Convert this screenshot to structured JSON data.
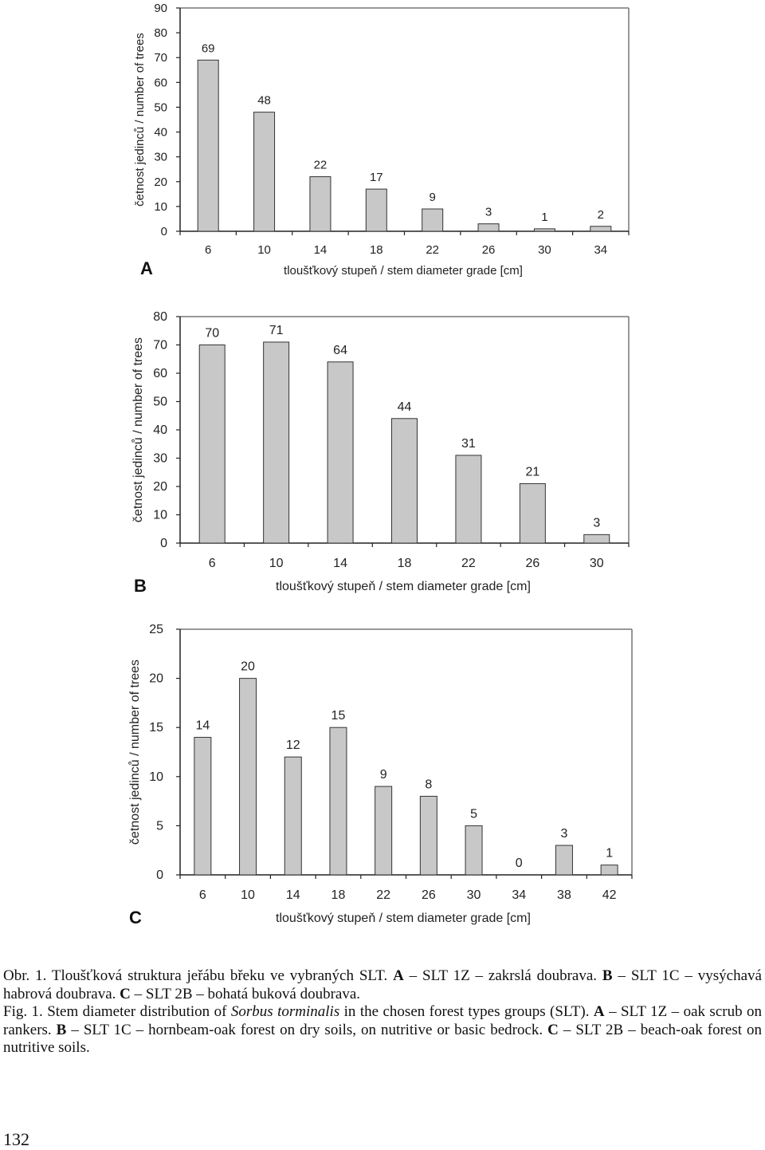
{
  "chart_data": [
    {
      "type": "bar",
      "panel": "A",
      "categories": [
        "6",
        "10",
        "14",
        "18",
        "22",
        "26",
        "30",
        "34"
      ],
      "values": [
        69,
        48,
        22,
        17,
        9,
        3,
        1,
        2
      ],
      "xlabel": "tloušťkový stupeň / stem diameter grade [cm]",
      "ylabel": "četnost jedinců / number of trees",
      "ylim": [
        0,
        90
      ],
      "yticks": [
        0,
        10,
        20,
        30,
        40,
        50,
        60,
        70,
        80,
        90
      ],
      "bar_color": "#c8c8c8",
      "grid": false
    },
    {
      "type": "bar",
      "panel": "B",
      "categories": [
        "6",
        "10",
        "14",
        "18",
        "22",
        "26",
        "30"
      ],
      "values": [
        70,
        71,
        64,
        44,
        31,
        21,
        3
      ],
      "xlabel": "tloušťkový stupeň / stem diameter grade [cm]",
      "ylabel": "četnost jedinců / number of trees",
      "ylim": [
        0,
        80
      ],
      "yticks": [
        0,
        10,
        20,
        30,
        40,
        50,
        60,
        70,
        80
      ],
      "bar_color": "#c8c8c8",
      "grid": false
    },
    {
      "type": "bar",
      "panel": "C",
      "categories": [
        "6",
        "10",
        "14",
        "18",
        "22",
        "26",
        "30",
        "34",
        "38",
        "42"
      ],
      "values": [
        14,
        20,
        12,
        15,
        9,
        8,
        5,
        0,
        3,
        1
      ],
      "xlabel": "tloušťkový stupeň / stem diameter grade [cm]",
      "ylabel": "četnost jedinců / number of trees",
      "ylim": [
        0,
        25
      ],
      "yticks": [
        0,
        5,
        10,
        15,
        20,
        25
      ],
      "bar_color": "#c8c8c8",
      "grid": false
    }
  ],
  "caption": {
    "cz_prefix": "Obr. 1. Tloušťková struktura jeřábu břeku ve vybraných SLT. ",
    "cz_a_label": "A",
    "cz_a_text": " – SLT 1Z – zakrslá doubrava. ",
    "cz_b_label": "B",
    "cz_b_text": " – SLT 1C – vysýchavá habrová doubrava. ",
    "cz_c_label": "C",
    "cz_c_text": " – SLT 2B – bohatá buková doubrava.",
    "en_prefix": "Fig. 1. Stem diameter distribution of ",
    "en_species": "Sorbus torminalis",
    "en_suffix": " in the chosen forest types groups (SLT). ",
    "en_a_label": "A",
    "en_a_text": " – SLT 1Z – oak scrub on rankers. ",
    "en_b_label": "B",
    "en_b_text": " – SLT 1C – hornbeam-oak forest on dry soils, on nutritive or basic bedrock. ",
    "en_c_label": "C",
    "en_c_text": " – SLT 2B – beach-oak forest on nutritive soils."
  },
  "page_number": "132"
}
